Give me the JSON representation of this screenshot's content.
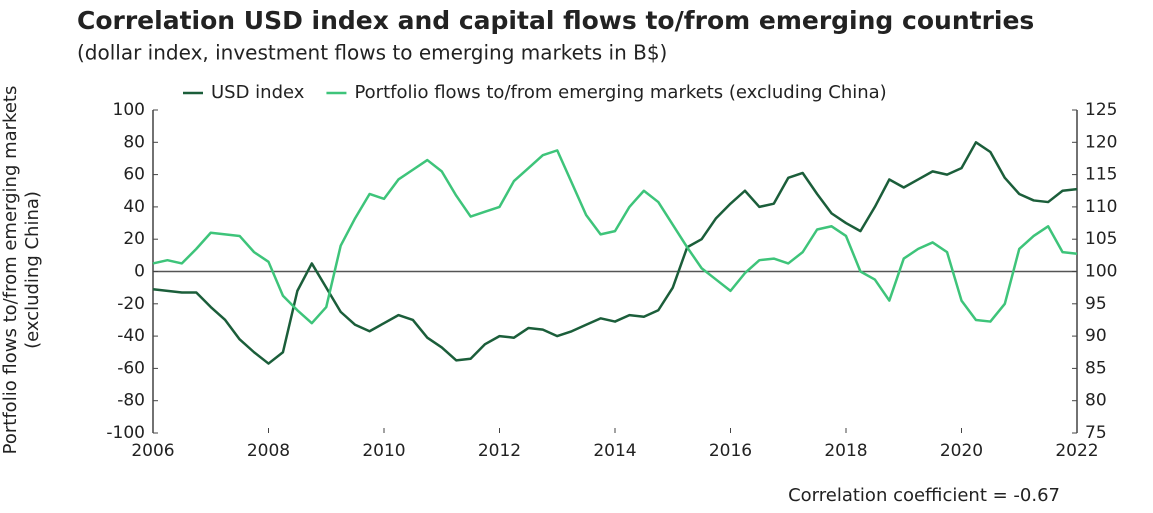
{
  "chart_data": {
    "type": "line",
    "title": "Correlation USD index and capital flows to/from emerging countries",
    "subtitle": "(dollar index, investment flows to emerging markets in B$)",
    "y_label": "Portfolio flows to/from emerging markets (excluding China)",
    "annotation": "Correlation coefficient = -0.67",
    "x": [
      2006,
      2006.25,
      2006.5,
      2006.75,
      2007,
      2007.25,
      2007.5,
      2007.75,
      2008,
      2008.25,
      2008.5,
      2008.75,
      2009,
      2009.25,
      2009.5,
      2009.75,
      2010,
      2010.25,
      2010.5,
      2010.75,
      2011,
      2011.25,
      2011.5,
      2011.75,
      2012,
      2012.25,
      2012.5,
      2012.75,
      2013,
      2013.25,
      2013.5,
      2013.75,
      2014,
      2014.25,
      2014.5,
      2014.75,
      2015,
      2015.25,
      2015.5,
      2015.75,
      2016,
      2016.25,
      2016.5,
      2016.75,
      2017,
      2017.25,
      2017.5,
      2017.75,
      2018,
      2018.25,
      2018.5,
      2018.75,
      2019,
      2019.25,
      2019.5,
      2019.75,
      2020,
      2020.25,
      2020.5,
      2020.75,
      2021,
      2021.25,
      2021.5,
      2021.75,
      2022
    ],
    "xlim": [
      2006,
      2022
    ],
    "xticks": [
      2006,
      2008,
      2010,
      2012,
      2014,
      2016,
      2018,
      2020,
      2022
    ],
    "ylim": [
      -100,
      100
    ],
    "yticks": [
      -100,
      -80,
      -60,
      -40,
      -20,
      0,
      20,
      40,
      60,
      80,
      100
    ],
    "y2lim": [
      75,
      125
    ],
    "y2ticks": [
      75,
      80,
      85,
      90,
      95,
      100,
      105,
      110,
      115,
      120,
      125
    ],
    "legend": "top",
    "series": [
      {
        "name": "USD index",
        "color": "#1b5e3a",
        "axis": "y2",
        "values": [
          97.25,
          97,
          96.75,
          96.75,
          94.5,
          92.5,
          89.5,
          87.5,
          85.75,
          87.5,
          97,
          101.25,
          97.5,
          93.75,
          91.75,
          90.75,
          92,
          93.25,
          92.5,
          89.75,
          88.25,
          86.25,
          86.5,
          88.75,
          90,
          89.75,
          91.25,
          91,
          90,
          90.75,
          91.75,
          92.75,
          92.25,
          93.25,
          93,
          94,
          97.5,
          103.75,
          105,
          108.25,
          110.5,
          112.5,
          110,
          110.5,
          114.5,
          115.25,
          112,
          109,
          107.5,
          106.25,
          110,
          114.25,
          113,
          114.25,
          115.5,
          115,
          116,
          120,
          118.5,
          114.5,
          112,
          111,
          110.75,
          112.5,
          112.75
        ]
      },
      {
        "name": "Portfolio flows to/from emerging markets (excluding China)",
        "color": "#3ec47a",
        "values": [
          5,
          7,
          5,
          14,
          24,
          23,
          22,
          12,
          6,
          -15,
          -24,
          -32,
          -22,
          16,
          33,
          48,
          45,
          57,
          63,
          69,
          62,
          47,
          34,
          37,
          40,
          56,
          64,
          72,
          75,
          55,
          35,
          23,
          25,
          40,
          50,
          43,
          29,
          15,
          2,
          -5,
          -12,
          -1,
          7,
          8,
          5,
          12,
          26,
          28,
          22,
          0,
          -5,
          -18,
          8,
          14,
          18,
          12,
          -18,
          -30,
          -31,
          -20,
          14,
          22,
          28,
          12,
          11
        ]
      }
    ]
  }
}
